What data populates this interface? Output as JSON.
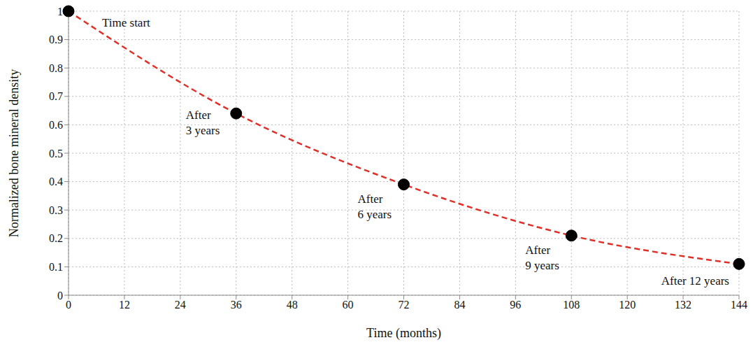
{
  "chart_data": {
    "type": "line",
    "x_label": "Time (months)",
    "y_label": "Normalized bone mineral density",
    "x": [
      0,
      36,
      72,
      108,
      144
    ],
    "values": [
      1,
      0.64,
      0.39,
      0.21,
      0.11
    ],
    "annotations": [
      "Time start",
      "After 3 years",
      "After 6 years",
      "After 9 years",
      "After 12 years"
    ],
    "color": "#e0302a",
    "marker": "circle",
    "line_style": "dashed",
    "xlim": [
      0,
      144
    ],
    "xticks": [
      0,
      12,
      24,
      36,
      48,
      60,
      72,
      84,
      96,
      108,
      120,
      132,
      144
    ],
    "ylim": [
      0,
      1
    ],
    "yticks": [
      0,
      0.1,
      0.2,
      0.3,
      0.4,
      0.5,
      0.6,
      0.7,
      0.8,
      0.9,
      1
    ],
    "grid": true
  }
}
